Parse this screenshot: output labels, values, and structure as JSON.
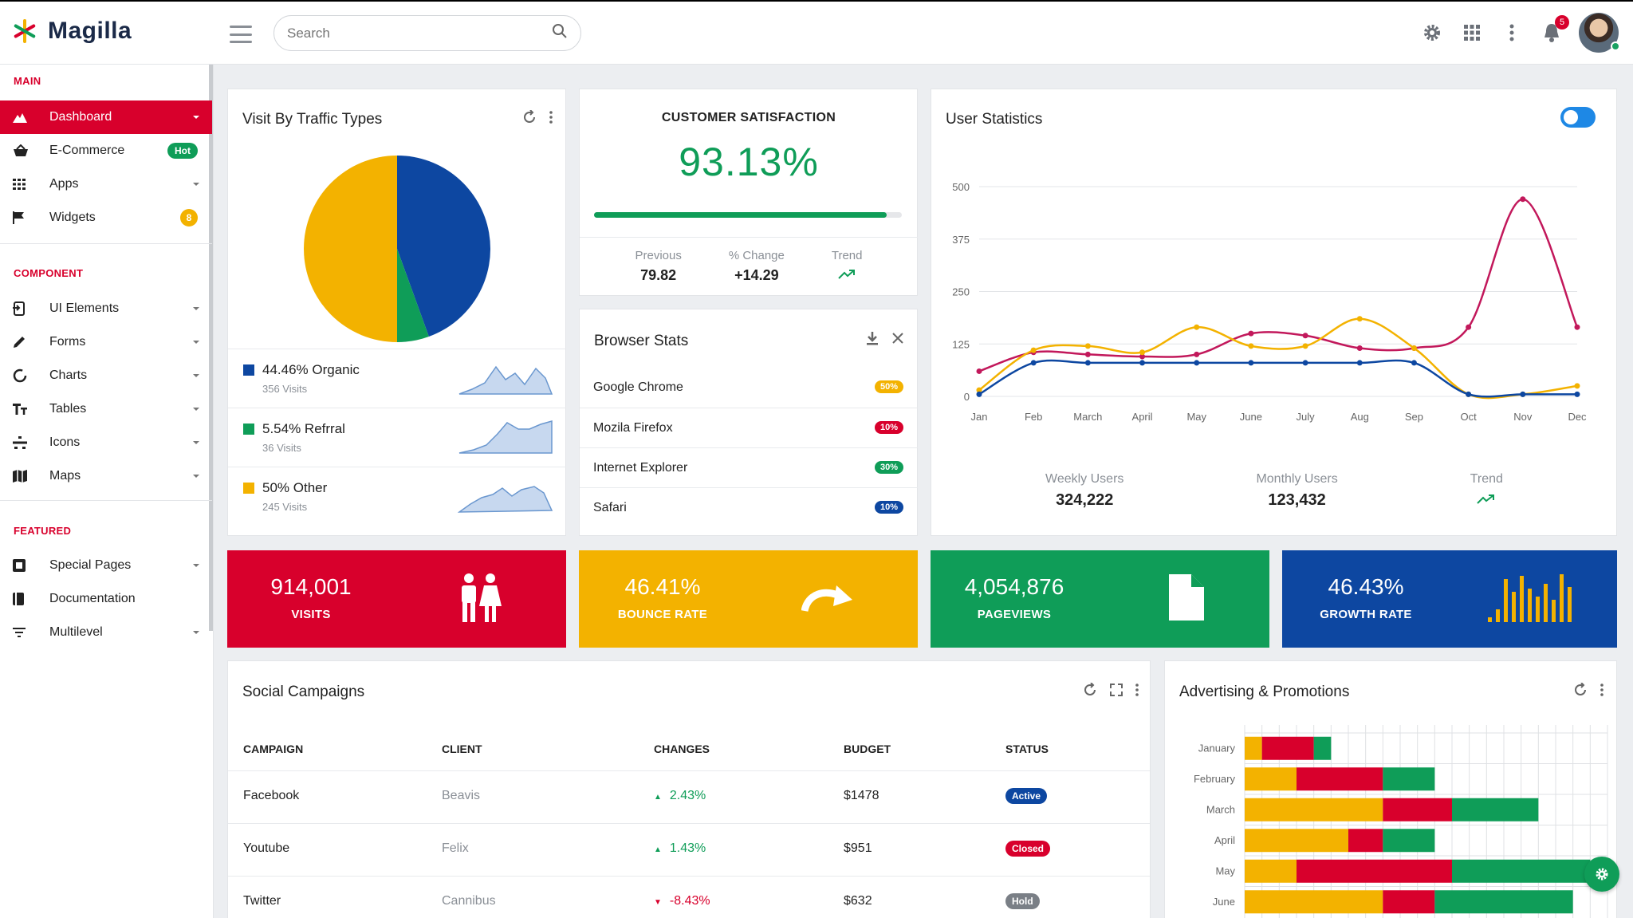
{
  "app": {
    "name": "Magilla"
  },
  "search": {
    "placeholder": "Search"
  },
  "header": {
    "notification_count": "5"
  },
  "sidebar": {
    "sections": {
      "main": "MAIN",
      "component": "COMPONENT",
      "featured": "FEATURED"
    },
    "items": [
      {
        "label": "Dashboard",
        "icon": "dashboard-icon"
      },
      {
        "label": "E-Commerce",
        "icon": "shopping-basket-icon",
        "badge": "Hot"
      },
      {
        "label": "Apps",
        "icon": "grid-icon"
      },
      {
        "label": "Widgets",
        "icon": "flag-icon",
        "badge": "8"
      },
      {
        "label": "UI Elements",
        "icon": "ui-elements-icon"
      },
      {
        "label": "Forms",
        "icon": "pencil-icon"
      },
      {
        "label": "Charts",
        "icon": "chart-circle-icon"
      },
      {
        "label": "Tables",
        "icon": "table-icon"
      },
      {
        "label": "Icons",
        "icon": "icons-icon"
      },
      {
        "label": "Maps",
        "icon": "map-icon"
      },
      {
        "label": "Special Pages",
        "icon": "pages-icon"
      },
      {
        "label": "Documentation",
        "icon": "book-icon"
      },
      {
        "label": "Multilevel",
        "icon": "filter-icon"
      }
    ]
  },
  "traffic": {
    "title": "Visit By Traffic Types",
    "rows": [
      {
        "label": "44.46% Organic",
        "sub": "356 Visits",
        "color": "#0d47a1"
      },
      {
        "label": "5.54% Refrral",
        "sub": "36 Visits",
        "color": "#0f9d58"
      },
      {
        "label": "50% Other",
        "sub": "245 Visits",
        "color": "#f3b200"
      }
    ]
  },
  "satisfaction": {
    "title": "CUSTOMER SATISFACTION",
    "value": "93.13%",
    "progress": 0.95,
    "stats": [
      {
        "key": "Previous",
        "value": "79.82"
      },
      {
        "key": "% Change",
        "value": "+14.29"
      },
      {
        "key": "Trend",
        "value": ""
      }
    ]
  },
  "browser": {
    "title": "Browser Stats",
    "rows": [
      {
        "name": "Google Chrome",
        "pct": "50%",
        "color": "#f3b200"
      },
      {
        "name": "Mozila Firefox",
        "pct": "10%",
        "color": "#d8002c"
      },
      {
        "name": "Internet Explorer",
        "pct": "30%",
        "color": "#0f9d58"
      },
      {
        "name": "Safari",
        "pct": "10%",
        "color": "#0d47a1"
      }
    ]
  },
  "user_stats": {
    "title": "User Statistics",
    "stats": [
      {
        "key": "Weekly Users",
        "value": "324,222"
      },
      {
        "key": "Monthly Users",
        "value": "123,432"
      },
      {
        "key": "Trend",
        "value": ""
      }
    ]
  },
  "tiles": [
    {
      "value": "914,001",
      "label": "VISITS",
      "color": "#d8002c",
      "icon": "users-icon"
    },
    {
      "value": "46.41%",
      "label": "BOUNCE RATE",
      "color": "#f3b200",
      "icon": "redo-arrow-icon"
    },
    {
      "value": "4,054,876",
      "label": "PAGEVIEWS",
      "color": "#0f9d58",
      "icon": "file-icon"
    },
    {
      "value": "46.43%",
      "label": "GROWTH RATE",
      "color": "#0d47a1",
      "icon": "bar-chart-icon"
    }
  ],
  "social": {
    "title": "Social Campaigns",
    "columns": [
      "CAMPAIGN",
      "CLIENT",
      "CHANGES",
      "BUDGET",
      "STATUS"
    ],
    "rows": [
      {
        "campaign": "Facebook",
        "client": "Beavis",
        "change": "2.43%",
        "dir": "up",
        "budget": "$1478",
        "status": "Active",
        "status_color": "#0d47a1"
      },
      {
        "campaign": "Youtube",
        "client": "Felix",
        "change": "1.43%",
        "dir": "up",
        "budget": "$951",
        "status": "Closed",
        "status_color": "#d8002c"
      },
      {
        "campaign": "Twitter",
        "client": "Cannibus",
        "change": "-8.43%",
        "dir": "down",
        "budget": "$632",
        "status": "Hold",
        "status_color": "#7a7f86"
      }
    ]
  },
  "advertising": {
    "title": "Advertising & Promotions"
  },
  "colors": {
    "primary": "#d8002c",
    "green": "#0f9d58",
    "yellow": "#f3b200",
    "blue": "#0d47a1"
  },
  "chart_data": [
    {
      "type": "pie",
      "labels": [
        "Organic",
        "Refrral",
        "Other"
      ],
      "values": [
        44.46,
        5.54,
        50
      ],
      "colors": [
        "#0d47a1",
        "#0f9d58",
        "#f3b200"
      ]
    },
    {
      "type": "line",
      "x": [
        "Jan",
        "Feb",
        "March",
        "April",
        "May",
        "June",
        "July",
        "Aug",
        "Sep",
        "Oct",
        "Nov",
        "Dec"
      ],
      "yticks": [
        0,
        125,
        250,
        375,
        500
      ],
      "ylim": [
        0,
        500
      ],
      "grid": true,
      "series": [
        {
          "color": "#c2185b",
          "values": [
            60,
            105,
            100,
            95,
            100,
            150,
            145,
            115,
            115,
            165,
            470,
            165
          ]
        },
        {
          "color": "#f3b200",
          "values": [
            15,
            110,
            120,
            105,
            165,
            120,
            120,
            185,
            115,
            5,
            5,
            25
          ]
        },
        {
          "color": "#0d47a1",
          "values": [
            5,
            80,
            80,
            80,
            80,
            80,
            80,
            80,
            80,
            5,
            5,
            5
          ]
        }
      ]
    },
    {
      "type": "bar",
      "orientation": "horizontal",
      "stacked": true,
      "categories": [
        "January",
        "February",
        "March",
        "April",
        "May",
        "June"
      ],
      "series": [
        {
          "color": "#f3b200",
          "values": [
            1,
            3,
            8,
            6,
            3,
            8
          ]
        },
        {
          "color": "#d8002c",
          "values": [
            3,
            5,
            4,
            2,
            9,
            3
          ]
        },
        {
          "color": "#0f9d58",
          "values": [
            1,
            3,
            5,
            3,
            8,
            8
          ]
        }
      ],
      "xlim": [
        0,
        21
      ],
      "grid": true
    }
  ]
}
